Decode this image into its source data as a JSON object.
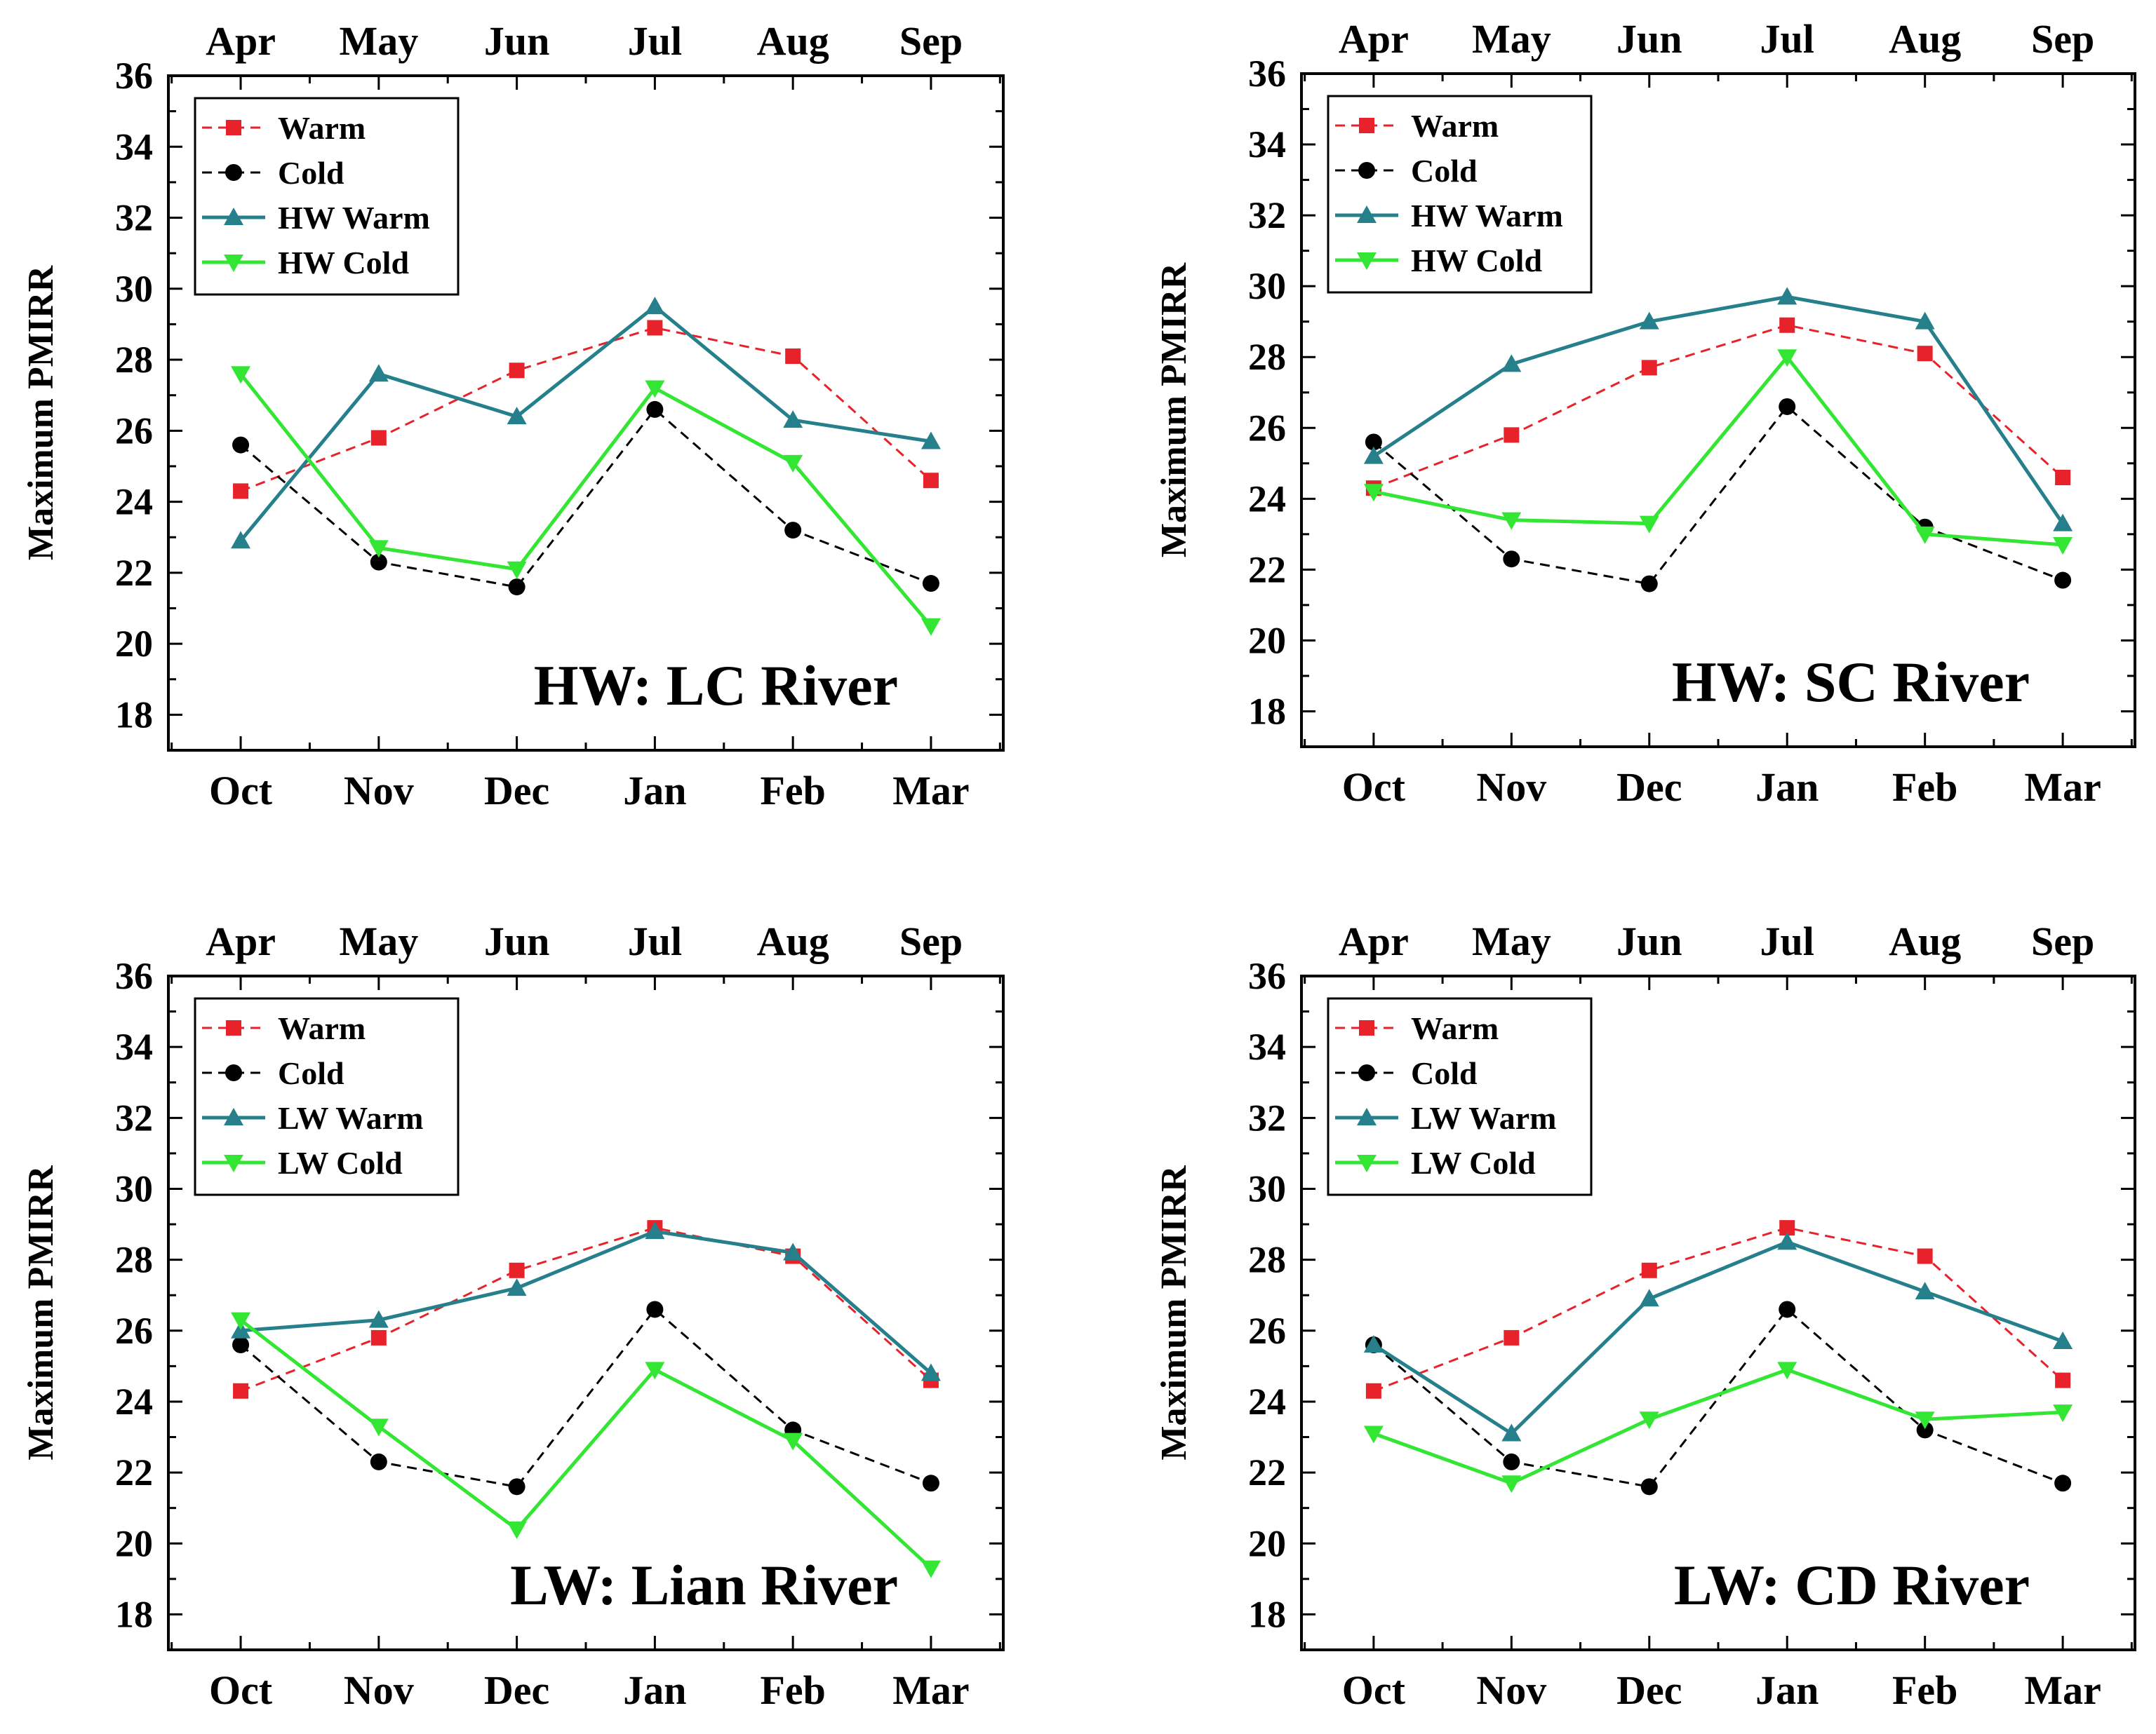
{
  "figure": {
    "ylabel": "Maximum PMIRR",
    "ylim": [
      17,
      36
    ],
    "yticks": [
      18,
      20,
      22,
      24,
      26,
      28,
      30,
      32,
      34,
      36
    ],
    "bottom_months": [
      "Oct",
      "Nov",
      "Dec",
      "Jan",
      "Feb",
      "Mar"
    ],
    "top_months": [
      "Apr",
      "May",
      "Jun",
      "Jul",
      "Aug",
      "Sep"
    ]
  },
  "chart_data": [
    {
      "type": "line",
      "title": "HW: LC River",
      "x": [
        "Oct",
        "Nov",
        "Dec",
        "Jan",
        "Feb",
        "Mar"
      ],
      "x_top": [
        "Apr",
        "May",
        "Jun",
        "Jul",
        "Aug",
        "Sep"
      ],
      "ylabel": "Maximum PMIRR",
      "ylim": [
        17,
        36
      ],
      "legend_position": "top-left",
      "series": [
        {
          "name": "Warm",
          "color": "#e8222a",
          "marker": "square",
          "dashed": true,
          "values": [
            24.3,
            25.8,
            27.7,
            28.9,
            28.1,
            24.6
          ]
        },
        {
          "name": "Cold",
          "color": "#000000",
          "marker": "circle",
          "dashed": true,
          "values": [
            25.6,
            22.3,
            21.6,
            26.6,
            23.2,
            21.7
          ]
        },
        {
          "name": "HW Warm",
          "color": "#26808c",
          "marker": "triangle-up",
          "dashed": false,
          "values": [
            22.9,
            27.6,
            26.4,
            29.5,
            26.3,
            25.7
          ]
        },
        {
          "name": "HW Cold",
          "color": "#33e633",
          "marker": "triangle-down",
          "dashed": false,
          "values": [
            27.6,
            22.7,
            22.1,
            27.2,
            25.1,
            20.5
          ]
        }
      ]
    },
    {
      "type": "line",
      "title": "HW: SC River",
      "x": [
        "Oct",
        "Nov",
        "Dec",
        "Jan",
        "Feb",
        "Mar"
      ],
      "x_top": [
        "Apr",
        "May",
        "Jun",
        "Jul",
        "Aug",
        "Sep"
      ],
      "ylabel": "Maximum PMIRR",
      "ylim": [
        17,
        36
      ],
      "legend_position": "top-left",
      "series": [
        {
          "name": "Warm",
          "color": "#e8222a",
          "marker": "square",
          "dashed": true,
          "values": [
            24.3,
            25.8,
            27.7,
            28.9,
            28.1,
            24.6
          ]
        },
        {
          "name": "Cold",
          "color": "#000000",
          "marker": "circle",
          "dashed": true,
          "values": [
            25.6,
            22.3,
            21.6,
            26.6,
            23.2,
            21.7
          ]
        },
        {
          "name": "HW Warm",
          "color": "#26808c",
          "marker": "triangle-up",
          "dashed": false,
          "values": [
            25.2,
            27.8,
            29.0,
            29.7,
            29.0,
            23.3
          ]
        },
        {
          "name": "HW Cold",
          "color": "#33e633",
          "marker": "triangle-down",
          "dashed": false,
          "values": [
            24.2,
            23.4,
            23.3,
            28.0,
            23.0,
            22.7
          ]
        }
      ]
    },
    {
      "type": "line",
      "title": "LW: Lian River",
      "x": [
        "Oct",
        "Nov",
        "Dec",
        "Jan",
        "Feb",
        "Mar"
      ],
      "x_top": [
        "Apr",
        "May",
        "Jun",
        "Jul",
        "Aug",
        "Sep"
      ],
      "ylabel": "Maximum PMIRR",
      "ylim": [
        17,
        36
      ],
      "legend_position": "top-left",
      "series": [
        {
          "name": "Warm",
          "color": "#e8222a",
          "marker": "square",
          "dashed": true,
          "values": [
            24.3,
            25.8,
            27.7,
            28.9,
            28.1,
            24.6
          ]
        },
        {
          "name": "Cold",
          "color": "#000000",
          "marker": "circle",
          "dashed": true,
          "values": [
            25.6,
            22.3,
            21.6,
            26.6,
            23.2,
            21.7
          ]
        },
        {
          "name": "LW Warm",
          "color": "#26808c",
          "marker": "triangle-up",
          "dashed": false,
          "values": [
            26.0,
            26.3,
            27.2,
            28.8,
            28.2,
            24.8
          ]
        },
        {
          "name": "LW Cold",
          "color": "#33e633",
          "marker": "triangle-down",
          "dashed": false,
          "values": [
            26.3,
            23.3,
            20.4,
            24.9,
            22.9,
            19.3
          ]
        }
      ]
    },
    {
      "type": "line",
      "title": "LW: CD River",
      "x": [
        "Oct",
        "Nov",
        "Dec",
        "Jan",
        "Feb",
        "Mar"
      ],
      "x_top": [
        "Apr",
        "May",
        "Jun",
        "Jul",
        "Aug",
        "Sep"
      ],
      "ylabel": "Maximum PMIRR",
      "ylim": [
        17,
        36
      ],
      "legend_position": "top-left",
      "series": [
        {
          "name": "Warm",
          "color": "#e8222a",
          "marker": "square",
          "dashed": true,
          "values": [
            24.3,
            25.8,
            27.7,
            28.9,
            28.1,
            24.6
          ]
        },
        {
          "name": "Cold",
          "color": "#000000",
          "marker": "circle",
          "dashed": true,
          "values": [
            25.6,
            22.3,
            21.6,
            26.6,
            23.2,
            21.7
          ]
        },
        {
          "name": "LW Warm",
          "color": "#26808c",
          "marker": "triangle-up",
          "dashed": false,
          "values": [
            25.6,
            23.1,
            26.9,
            28.5,
            27.1,
            25.7
          ]
        },
        {
          "name": "LW Cold",
          "color": "#33e633",
          "marker": "triangle-down",
          "dashed": false,
          "values": [
            23.1,
            21.7,
            23.5,
            24.9,
            23.5,
            23.7
          ]
        }
      ]
    }
  ]
}
